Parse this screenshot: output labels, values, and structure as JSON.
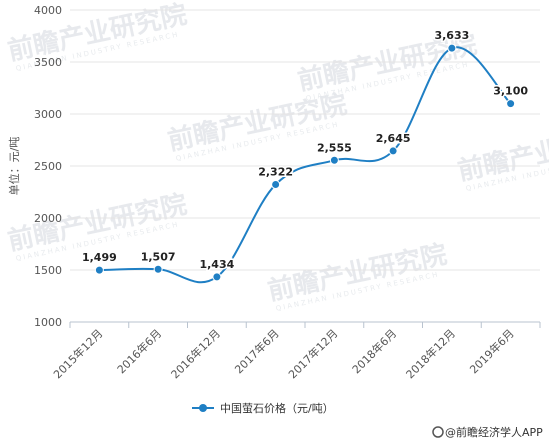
{
  "chart_data": {
    "type": "line",
    "categories": [
      "2015年12月",
      "2016年6月",
      "2016年12月",
      "2017年6月",
      "2017年12月",
      "2018年6月",
      "2018年12月",
      "2019年6月"
    ],
    "series": [
      {
        "name": "中国萤石价格（元/吨）",
        "values": [
          1499,
          1507,
          1434,
          2322,
          2555,
          2645,
          3633,
          3100
        ]
      }
    ],
    "data_labels": [
      "1,499",
      "1,507",
      "1,434",
      "2,322",
      "2,555",
      "2,645",
      "3,633",
      "3,100"
    ],
    "ylabel": "单位：元/吨",
    "xlabel": "",
    "ylim": [
      1000,
      4000
    ],
    "yticks": [
      "1000",
      "1500",
      "2000",
      "2500",
      "3000",
      "3500",
      "4000"
    ],
    "grid": "horizontal",
    "legend_position": "bottom",
    "color": "#1f7fc4"
  },
  "watermark": {
    "text": "前瞻产业研究院",
    "sub": "QIANZHAN INDUSTRY RESEARCH"
  },
  "footer": {
    "text": "@前瞻经济学人APP"
  }
}
